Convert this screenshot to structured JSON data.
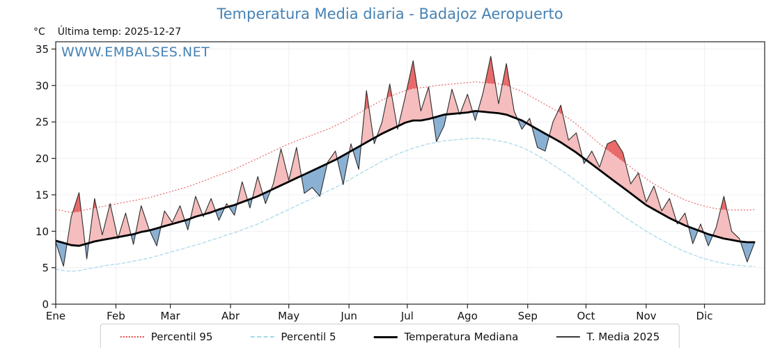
{
  "header": {
    "unit": "°C",
    "last_temp": "Última temp: 2025-12-27"
  },
  "watermark": "WWW.EMBALSES.NET",
  "colors": {
    "title": "#4682b4",
    "p95_line": "#e84545",
    "p5_line": "#a6d9ea",
    "median_line": "#000000",
    "t2025_line": "#2b2b2b",
    "fill_above_median": "#f5bdbd",
    "fill_above_p95": "#e86a6a",
    "fill_below_median": "#8ab1d4",
    "fill_below_p5": "#5a8cc0",
    "grid": "#f0f0f5",
    "axis": "#222222"
  },
  "chart_data": {
    "type": "line",
    "title": "Temperatura Media diaria - Badajoz Aeropuerto",
    "xlabel": "",
    "ylabel": "°C",
    "x_unit": "day_of_year",
    "xlim": [
      1,
      366
    ],
    "ylim": [
      0,
      36
    ],
    "yticks": [
      0,
      5,
      10,
      15,
      20,
      25,
      30,
      35
    ],
    "x_ticks": {
      "labels": [
        "Ene",
        "Feb",
        "Mar",
        "Abr",
        "May",
        "Jun",
        "Jul",
        "Ago",
        "Sep",
        "Oct",
        "Nov",
        "Dic"
      ],
      "days": [
        1,
        32,
        60,
        91,
        121,
        152,
        182,
        213,
        244,
        274,
        305,
        335
      ]
    },
    "legend_position": "bottom",
    "grid": true,
    "x": [
      1,
      5,
      9,
      13,
      17,
      21,
      25,
      29,
      33,
      37,
      41,
      45,
      49,
      53,
      57,
      61,
      65,
      69,
      73,
      77,
      81,
      85,
      89,
      93,
      97,
      101,
      105,
      109,
      113,
      117,
      121,
      125,
      129,
      133,
      137,
      141,
      145,
      149,
      153,
      157,
      161,
      165,
      169,
      173,
      177,
      181,
      185,
      189,
      193,
      197,
      201,
      205,
      209,
      213,
      217,
      221,
      225,
      229,
      233,
      237,
      241,
      245,
      249,
      253,
      257,
      261,
      265,
      269,
      273,
      277,
      281,
      285,
      289,
      293,
      297,
      301,
      305,
      309,
      313,
      317,
      321,
      325,
      329,
      333,
      337,
      341,
      345,
      349,
      353,
      357,
      361
    ],
    "series": [
      {
        "key": "p95",
        "name": "Percentil 95",
        "values": [
          13.0,
          12.8,
          12.6,
          12.7,
          13.0,
          13.2,
          13.4,
          13.6,
          13.8,
          14.0,
          14.2,
          14.4,
          14.6,
          14.9,
          15.2,
          15.5,
          15.8,
          16.1,
          16.5,
          16.9,
          17.3,
          17.7,
          18.1,
          18.5,
          19.0,
          19.5,
          20.0,
          20.5,
          21.0,
          21.5,
          22.0,
          22.4,
          22.8,
          23.2,
          23.6,
          24.0,
          24.5,
          25.0,
          25.6,
          26.2,
          26.8,
          27.4,
          28.0,
          28.5,
          28.9,
          29.3,
          29.6,
          29.7,
          29.8,
          30.0,
          30.1,
          30.2,
          30.3,
          30.4,
          30.5,
          30.4,
          30.3,
          30.2,
          30.0,
          29.6,
          29.2,
          28.6,
          28.0,
          27.4,
          26.8,
          26.2,
          25.5,
          24.7,
          23.8,
          22.9,
          22.0,
          21.2,
          20.4,
          19.6,
          18.8,
          18.0,
          17.2,
          16.5,
          15.9,
          15.3,
          14.8,
          14.3,
          13.9,
          13.6,
          13.3,
          13.1,
          13.0,
          12.9,
          12.9,
          12.9,
          13.0
        ]
      },
      {
        "key": "p5",
        "name": "Percentil 5",
        "values": [
          4.8,
          4.6,
          4.5,
          4.6,
          4.8,
          5.0,
          5.2,
          5.4,
          5.5,
          5.7,
          5.9,
          6.1,
          6.3,
          6.6,
          6.9,
          7.2,
          7.5,
          7.8,
          8.1,
          8.4,
          8.8,
          9.1,
          9.5,
          9.8,
          10.2,
          10.6,
          11.0,
          11.5,
          12.0,
          12.5,
          13.0,
          13.5,
          14.0,
          14.5,
          15.0,
          15.5,
          16.0,
          16.6,
          17.2,
          17.8,
          18.4,
          19.0,
          19.6,
          20.1,
          20.6,
          21.0,
          21.4,
          21.7,
          22.0,
          22.2,
          22.4,
          22.5,
          22.6,
          22.7,
          22.8,
          22.7,
          22.6,
          22.4,
          22.2,
          21.9,
          21.5,
          21.0,
          20.4,
          19.8,
          19.1,
          18.4,
          17.7,
          16.9,
          16.1,
          15.3,
          14.5,
          13.7,
          12.9,
          12.1,
          11.4,
          10.7,
          10.0,
          9.4,
          8.8,
          8.2,
          7.7,
          7.2,
          6.8,
          6.4,
          6.1,
          5.8,
          5.6,
          5.4,
          5.3,
          5.2,
          5.2
        ]
      },
      {
        "key": "median",
        "name": "Temperatura Mediana",
        "values": [
          8.7,
          8.4,
          8.1,
          8.0,
          8.3,
          8.6,
          8.8,
          9.0,
          9.2,
          9.4,
          9.6,
          9.9,
          10.1,
          10.4,
          10.7,
          11.0,
          11.3,
          11.6,
          12.0,
          12.3,
          12.6,
          13.0,
          13.3,
          13.6,
          14.0,
          14.4,
          14.8,
          15.3,
          15.8,
          16.3,
          16.8,
          17.3,
          17.8,
          18.3,
          18.8,
          19.3,
          19.8,
          20.4,
          21.0,
          21.6,
          22.2,
          22.8,
          23.4,
          23.9,
          24.4,
          24.9,
          25.2,
          25.2,
          25.4,
          25.7,
          26.0,
          26.1,
          26.2,
          26.3,
          26.5,
          26.4,
          26.3,
          26.2,
          26.0,
          25.6,
          25.2,
          24.6,
          24.0,
          23.4,
          22.8,
          22.2,
          21.5,
          20.8,
          20.0,
          19.2,
          18.4,
          17.6,
          16.8,
          16.0,
          15.2,
          14.4,
          13.6,
          13.0,
          12.4,
          11.8,
          11.3,
          10.8,
          10.4,
          10.0,
          9.6,
          9.3,
          9.0,
          8.8,
          8.6,
          8.5,
          8.5
        ]
      },
      {
        "key": "t2025",
        "name": "T. Media 2025",
        "values": [
          8.5,
          5.2,
          12.0,
          15.3,
          6.2,
          14.5,
          9.5,
          13.8,
          9.0,
          12.5,
          8.2,
          13.5,
          10.3,
          8.0,
          12.8,
          11.2,
          13.5,
          10.2,
          14.8,
          12.0,
          14.5,
          11.5,
          13.8,
          12.2,
          16.8,
          13.2,
          17.5,
          13.8,
          16.5,
          21.3,
          17.0,
          21.5,
          15.2,
          16.0,
          14.8,
          19.5,
          21.0,
          16.4,
          22.0,
          18.5,
          29.3,
          22.0,
          25.0,
          30.2,
          24.0,
          28.5,
          33.4,
          26.5,
          29.8,
          22.3,
          24.5,
          29.5,
          26.0,
          28.8,
          25.2,
          29.0,
          34.0,
          27.5,
          33.0,
          26.5,
          24.0,
          25.5,
          21.5,
          21.0,
          25.0,
          27.3,
          22.5,
          23.5,
          19.3,
          21.0,
          18.8,
          22.0,
          22.5,
          20.8,
          16.5,
          18.0,
          14.0,
          16.2,
          12.8,
          14.5,
          11.0,
          12.5,
          8.3,
          11.0,
          8.0,
          10.5,
          14.8,
          10.0,
          9.0,
          5.8,
          8.6
        ]
      }
    ]
  }
}
